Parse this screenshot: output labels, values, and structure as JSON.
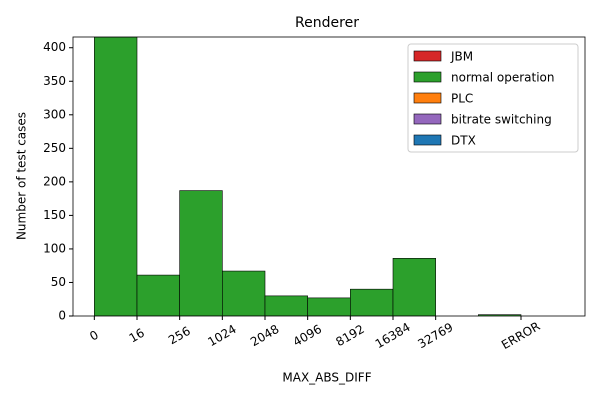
{
  "chart_data": {
    "type": "histogram",
    "title": "Renderer",
    "xlabel": "MAX_ABS_DIFF",
    "ylabel": "Number of test cases",
    "bins": [
      0,
      1,
      2,
      3,
      4,
      5,
      6,
      7,
      8,
      9,
      10
    ],
    "series": [
      {
        "name": "JBM",
        "color": "#d62728",
        "values": [
          0,
          0,
          0,
          0,
          0,
          0,
          0,
          0,
          0,
          0
        ]
      },
      {
        "name": "normal operation",
        "color": "#2ca02c",
        "values": [
          416,
          61,
          187,
          67,
          30,
          27,
          40,
          86,
          0,
          2
        ]
      },
      {
        "name": "PLC",
        "color": "#ff7f0e",
        "values": [
          0,
          0,
          0,
          0,
          0,
          0,
          0,
          0,
          0,
          0
        ]
      },
      {
        "name": "bitrate switching",
        "color": "#9467bd",
        "values": [
          0,
          0,
          0,
          0,
          0,
          0,
          0,
          0,
          0,
          0
        ]
      },
      {
        "name": "DTX",
        "color": "#1f77b4",
        "values": [
          0,
          0,
          0,
          0,
          0,
          0,
          0,
          0,
          0,
          0
        ]
      }
    ],
    "xlim": [
      -0.5,
      11.5
    ],
    "xticks": [
      0,
      {
        "value": 1,
        "label": "16"
      },
      {
        "value": 2,
        "label": "256"
      },
      {
        "value": 3,
        "label": "1024"
      },
      {
        "value": 4,
        "label": "2048"
      },
      {
        "value": 5,
        "label": "4096"
      },
      {
        "value": 6,
        "label": "8192"
      },
      {
        "value": 7,
        "label": "16384"
      },
      {
        "value": 8,
        "label": "32769"
      },
      {
        "value": 10,
        "label": "ERROR"
      }
    ],
    "ylim": [
      0,
      416
    ],
    "yticks": [
      0,
      50,
      100,
      150,
      200,
      250,
      300,
      350,
      400
    ],
    "stacked": true,
    "legend": "upper right"
  }
}
